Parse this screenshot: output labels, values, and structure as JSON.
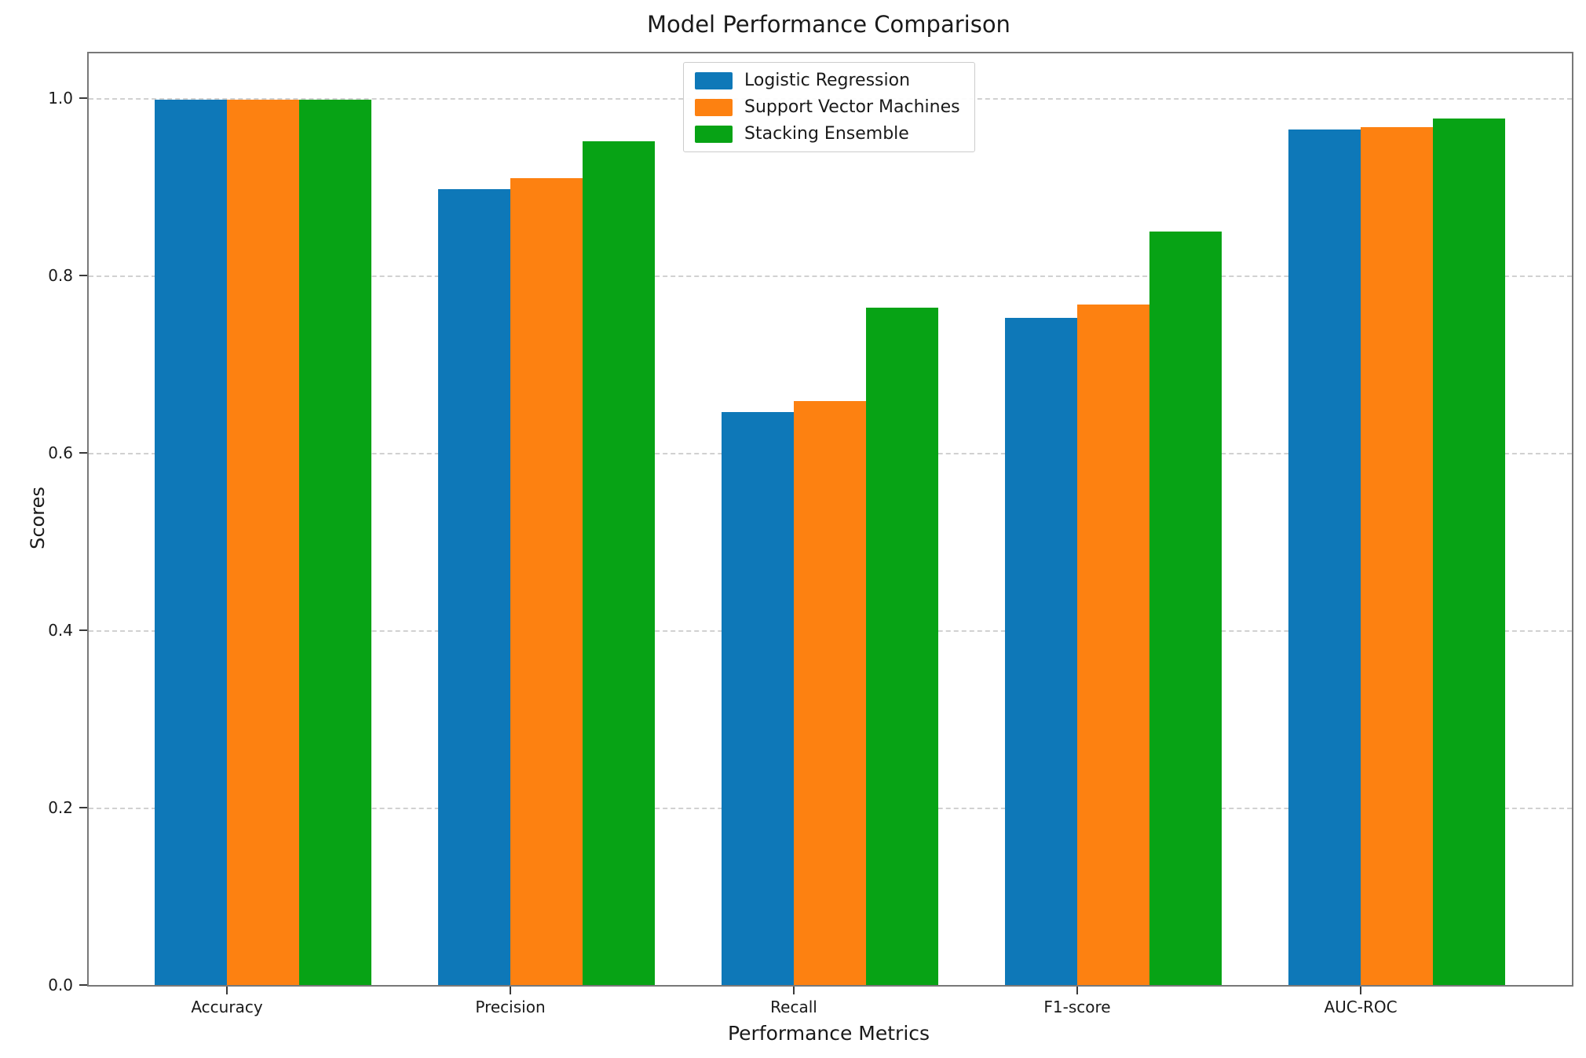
{
  "figure": {
    "title": "Model Performance Comparison",
    "xlabel": "Performance Metrics",
    "ylabel": "Scores"
  },
  "chart_data": {
    "type": "bar",
    "title": "Model Performance Comparison",
    "xlabel": "Performance Metrics",
    "ylabel": "Scores",
    "categories": [
      "Accuracy",
      "Precision",
      "Recall",
      "F1-score",
      "AUC-ROC"
    ],
    "series": [
      {
        "name": "Logistic Regression",
        "color": "#0e78b8",
        "values": [
          0.998,
          0.897,
          0.646,
          0.752,
          0.964
        ]
      },
      {
        "name": "Support Vector Machines",
        "color": "#fd8111",
        "values": [
          0.998,
          0.909,
          0.658,
          0.767,
          0.967
        ]
      },
      {
        "name": "Stacking Ensemble",
        "color": "#07a315",
        "values": [
          0.998,
          0.951,
          0.763,
          0.849,
          0.977
        ]
      }
    ],
    "ylim": [
      0,
      1.05
    ],
    "yticks": [
      "0.0",
      "0.2",
      "0.4",
      "0.6",
      "0.8",
      "1.0"
    ],
    "grid": "horizontal-dashed",
    "legend_position": "upper center"
  }
}
